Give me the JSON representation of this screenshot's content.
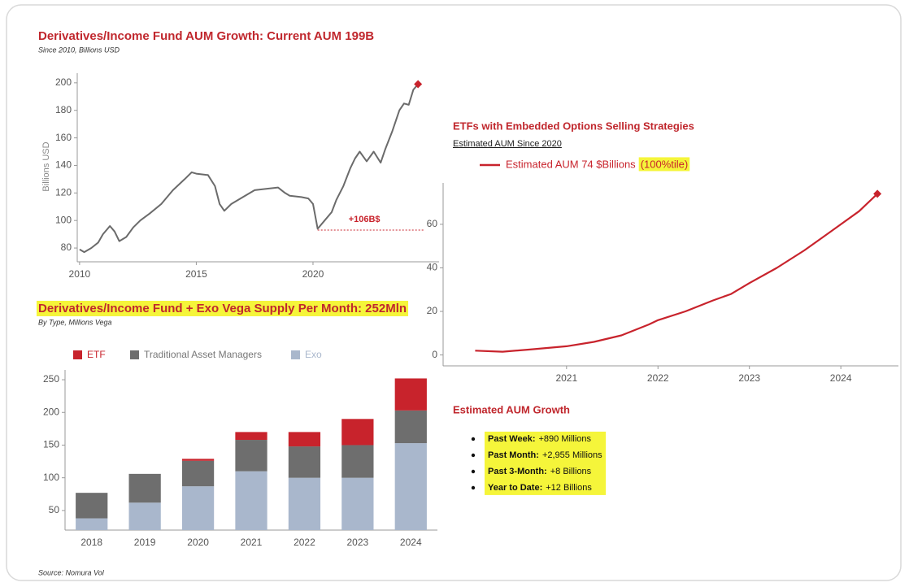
{
  "chart_data": [
    {
      "type": "line",
      "title": "Derivatives/Income Fund AUM Growth: Current AUM 199B",
      "subtitle": "Since 2010, Billions USD",
      "ylabel": "Billions USD",
      "x": [
        2010.0,
        2010.2,
        2010.5,
        2010.8,
        2011.0,
        2011.3,
        2011.5,
        2011.7,
        2012.0,
        2012.3,
        2012.6,
        2013.0,
        2013.5,
        2014.0,
        2014.5,
        2014.8,
        2015.0,
        2015.5,
        2015.8,
        2016.0,
        2016.2,
        2016.5,
        2017.0,
        2017.5,
        2018.0,
        2018.5,
        2018.8,
        2019.0,
        2019.5,
        2019.8,
        2020.0,
        2020.2,
        2020.5,
        2020.8,
        2021.0,
        2021.3,
        2021.6,
        2021.8,
        2022.0,
        2022.3,
        2022.6,
        2022.9,
        2023.1,
        2023.4,
        2023.7,
        2023.9,
        2024.1,
        2024.3,
        2024.5
      ],
      "series": [
        {
          "name": "AUM",
          "color": "#6b6b6b",
          "values": [
            79,
            77,
            80,
            84,
            90,
            96,
            92,
            85,
            88,
            95,
            100,
            105,
            112,
            122,
            130,
            135,
            134,
            133,
            125,
            112,
            107,
            112,
            117,
            122,
            123,
            124,
            120,
            118,
            117,
            116,
            112,
            94,
            100,
            106,
            115,
            125,
            138,
            145,
            150,
            143,
            150,
            142,
            152,
            165,
            180,
            185,
            184,
            195,
            199
          ]
        }
      ],
      "marker_color": "#c8232c",
      "annotation": {
        "text": "+106B$",
        "line_y": 93,
        "x_from": 2020.2,
        "x_to": 2024.8,
        "color": "#c8232c"
      },
      "xlim": [
        2009.9,
        2025.4
      ],
      "xticks": [
        2010,
        2015,
        2020
      ],
      "ylim": [
        70,
        207
      ],
      "yticks": [
        80,
        100,
        120,
        140,
        160,
        180,
        200
      ]
    },
    {
      "type": "line",
      "title": "ETFs with Embedded Options Selling Strategies",
      "subtitle": "Estimated AUM Since 2020",
      "x": [
        2020.0,
        2020.3,
        2020.6,
        2021.0,
        2021.3,
        2021.6,
        2021.9,
        2022.0,
        2022.3,
        2022.6,
        2022.8,
        2023.0,
        2023.3,
        2023.6,
        2023.8,
        2024.0,
        2024.2,
        2024.4
      ],
      "series": [
        {
          "name": "Estimated AUM 74 $Billions",
          "color": "#c8232c",
          "values": [
            2,
            1.5,
            2.5,
            4,
            6,
            9,
            14,
            16,
            20,
            25,
            28,
            33,
            40,
            48,
            54,
            60,
            66,
            74
          ]
        }
      ],
      "legend_note": "(100%tile)",
      "marker_color": "#c8232c",
      "xlim": [
        2019.65,
        2024.63
      ],
      "xticks": [
        2021,
        2022,
        2023,
        2024
      ],
      "ylim": [
        -5,
        79
      ],
      "yticks": [
        0,
        20,
        40,
        60
      ]
    },
    {
      "type": "bar",
      "stacked": true,
      "title": "Derivatives/Income Fund + Exo Vega Supply Per Month: 252Mln",
      "subtitle": "By Type, Millions Vega",
      "categories": [
        "2018",
        "2019",
        "2020",
        "2021",
        "2022",
        "2023",
        "2024"
      ],
      "series": [
        {
          "name": "Exo",
          "color": "#a9b7cc",
          "values": [
            38,
            62,
            87,
            110,
            100,
            100,
            153
          ]
        },
        {
          "name": "Traditional Asset Managers",
          "color": "#6e6e6e",
          "values": [
            39,
            44,
            39,
            48,
            48,
            50,
            50
          ]
        },
        {
          "name": "ETF",
          "color": "#c8232c",
          "values": [
            0,
            0,
            3,
            12,
            22,
            40,
            49
          ]
        }
      ],
      "legend_order": [
        2,
        1,
        0
      ],
      "ylim": [
        20,
        265
      ],
      "yticks": [
        50,
        100,
        150,
        200,
        250
      ]
    }
  ],
  "growth": {
    "title": "Estimated AUM Growth",
    "items": [
      {
        "label": "Past Week:",
        "value": "+890 Millions"
      },
      {
        "label": "Past Month:",
        "value": "+2,955 Millions"
      },
      {
        "label": "Past 3-Month:",
        "value": "+8 Billions"
      },
      {
        "label": "Year to Date:",
        "value": "+12 Billions"
      }
    ]
  },
  "source": "Source: Nomura Vol"
}
